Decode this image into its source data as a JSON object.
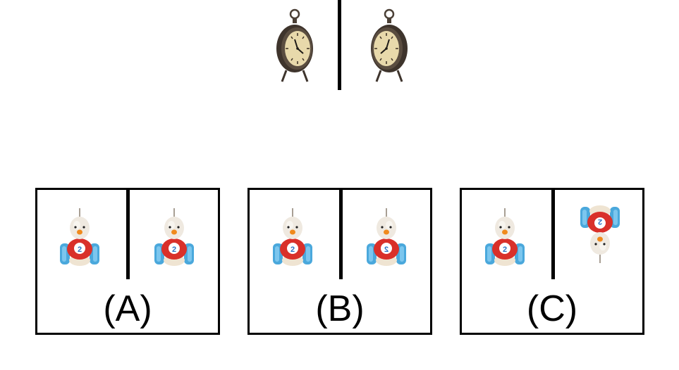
{
  "question": {
    "reference_pair": {
      "left": "clock-icon",
      "right": "clock-icon"
    }
  },
  "options": [
    {
      "label": "(A)",
      "left": "toy-bird-icon",
      "right": "toy-bird-icon"
    },
    {
      "label": "(B)",
      "left": "toy-bird-icon",
      "right": "toy-bird-icon"
    },
    {
      "label": "(C)",
      "left": "toy-bird-icon",
      "right": "toy-bird-icon"
    }
  ],
  "toy_badge_number": "2",
  "colors": {
    "clock_body": "#3e342c",
    "clock_face": "#e8d9ab",
    "toy_red": "#d9302a",
    "toy_wheel": "#4aa8dc",
    "toy_head": "#efe9e0",
    "toy_beak": "#f08a1c"
  }
}
